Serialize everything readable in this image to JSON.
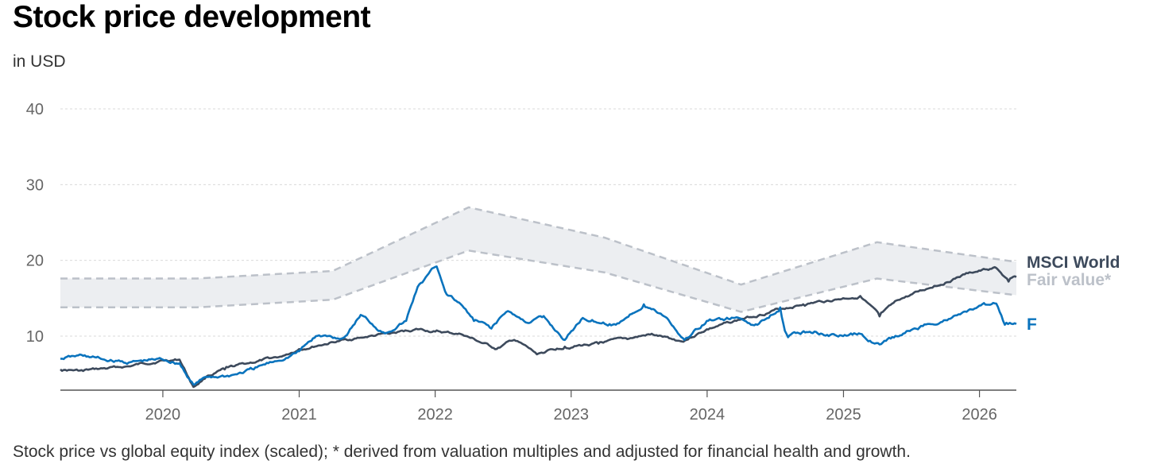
{
  "header": {
    "title": "Stock price development",
    "subtitle": "in USD"
  },
  "footnote": "Stock price vs global equity index (scaled); * derived from valuation multiples and adjusted for financial health and growth.",
  "colors": {
    "stock": "#0a73bd",
    "index": "#3d4a5c",
    "fair_band": "#eceef1",
    "fair_line": "#bcc1c9",
    "grid": "#d9d9d9",
    "axis": "#555555"
  },
  "chart_data": {
    "type": "line",
    "xlim": [
      "2019-04-01",
      "2026-04-10"
    ],
    "ylim": [
      3,
      42
    ],
    "yticks": [
      10,
      20,
      30,
      40
    ],
    "xticks": [
      {
        "date": "2020-01-01",
        "label": "2020"
      },
      {
        "date": "2021-01-01",
        "label": "2021"
      },
      {
        "date": "2022-01-01",
        "label": "2022"
      },
      {
        "date": "2023-01-01",
        "label": "2023"
      },
      {
        "date": "2024-01-01",
        "label": "2024"
      },
      {
        "date": "2025-01-01",
        "label": "2025"
      },
      {
        "date": "2026-01-01",
        "label": "2026"
      }
    ],
    "grid": true,
    "legend": "right-inline",
    "fair_value": {
      "name": "Fair value*",
      "upper": [
        {
          "x": "2019-04-01",
          "y": 17.6
        },
        {
          "x": "2020-04-01",
          "y": 17.6
        },
        {
          "x": "2021-04-01",
          "y": 18.6
        },
        {
          "x": "2022-04-01",
          "y": 27.0
        },
        {
          "x": "2023-04-01",
          "y": 23.0
        },
        {
          "x": "2024-04-01",
          "y": 16.8
        },
        {
          "x": "2025-04-01",
          "y": 22.4
        },
        {
          "x": "2026-04-10",
          "y": 19.8
        }
      ],
      "lower": [
        {
          "x": "2019-04-01",
          "y": 13.8
        },
        {
          "x": "2020-04-01",
          "y": 13.8
        },
        {
          "x": "2021-04-01",
          "y": 14.8
        },
        {
          "x": "2022-04-01",
          "y": 21.3
        },
        {
          "x": "2023-04-01",
          "y": 18.4
        },
        {
          "x": "2024-04-01",
          "y": 13.2
        },
        {
          "x": "2025-04-01",
          "y": 17.6
        },
        {
          "x": "2026-04-10",
          "y": 15.4
        }
      ]
    },
    "series": [
      {
        "name": "MSCI World",
        "color": "#3d4a5c",
        "points": [
          {
            "x": "2019-04-01",
            "y": 5.6
          },
          {
            "x": "2019-06-01",
            "y": 5.4
          },
          {
            "x": "2019-08-01",
            "y": 5.7
          },
          {
            "x": "2019-10-01",
            "y": 6.0
          },
          {
            "x": "2020-01-01",
            "y": 6.8
          },
          {
            "x": "2020-02-15",
            "y": 6.9
          },
          {
            "x": "2020-03-23",
            "y": 3.3
          },
          {
            "x": "2020-05-01",
            "y": 4.8
          },
          {
            "x": "2020-06-15",
            "y": 5.6
          },
          {
            "x": "2020-08-15",
            "y": 6.4
          },
          {
            "x": "2020-11-15",
            "y": 7.3
          },
          {
            "x": "2021-01-01",
            "y": 8.3
          },
          {
            "x": "2021-04-01",
            "y": 9.2
          },
          {
            "x": "2021-06-15",
            "y": 9.8
          },
          {
            "x": "2021-09-01",
            "y": 10.3
          },
          {
            "x": "2021-11-15",
            "y": 10.9
          },
          {
            "x": "2022-01-01",
            "y": 10.6
          },
          {
            "x": "2022-03-15",
            "y": 10.2
          },
          {
            "x": "2022-05-01",
            "y": 9.2
          },
          {
            "x": "2022-06-15",
            "y": 8.3
          },
          {
            "x": "2022-08-01",
            "y": 9.5
          },
          {
            "x": "2022-10-01",
            "y": 7.6
          },
          {
            "x": "2022-12-15",
            "y": 8.6
          },
          {
            "x": "2023-03-15",
            "y": 9.0
          },
          {
            "x": "2023-06-01",
            "y": 9.6
          },
          {
            "x": "2023-08-01",
            "y": 10.2
          },
          {
            "x": "2023-10-25",
            "y": 9.3
          },
          {
            "x": "2023-12-31",
            "y": 10.9
          },
          {
            "x": "2024-04-01",
            "y": 12.2
          },
          {
            "x": "2024-07-15",
            "y": 13.6
          },
          {
            "x": "2024-09-15",
            "y": 14.2
          },
          {
            "x": "2024-12-31",
            "y": 15.0
          },
          {
            "x": "2025-02-15",
            "y": 15.3
          },
          {
            "x": "2025-04-08",
            "y": 12.6
          },
          {
            "x": "2025-06-01",
            "y": 14.8
          },
          {
            "x": "2025-09-01",
            "y": 16.6
          },
          {
            "x": "2025-12-01",
            "y": 18.3
          },
          {
            "x": "2026-02-15",
            "y": 19.0
          },
          {
            "x": "2026-03-20",
            "y": 17.2
          },
          {
            "x": "2026-04-10",
            "y": 17.8
          }
        ]
      },
      {
        "name": "F",
        "color": "#0a73bd",
        "points": [
          {
            "x": "2019-04-01",
            "y": 7.0
          },
          {
            "x": "2019-06-01",
            "y": 7.4
          },
          {
            "x": "2019-08-01",
            "y": 6.8
          },
          {
            "x": "2019-10-01",
            "y": 6.5
          },
          {
            "x": "2020-01-01",
            "y": 6.9
          },
          {
            "x": "2020-02-15",
            "y": 6.4
          },
          {
            "x": "2020-03-23",
            "y": 3.6
          },
          {
            "x": "2020-05-01",
            "y": 4.6
          },
          {
            "x": "2020-07-01",
            "y": 4.8
          },
          {
            "x": "2020-09-01",
            "y": 5.6
          },
          {
            "x": "2020-11-01",
            "y": 6.7
          },
          {
            "x": "2021-01-01",
            "y": 8.0
          },
          {
            "x": "2021-02-15",
            "y": 10.0
          },
          {
            "x": "2021-05-01",
            "y": 9.8
          },
          {
            "x": "2021-06-15",
            "y": 12.8
          },
          {
            "x": "2021-08-15",
            "y": 10.5
          },
          {
            "x": "2021-10-15",
            "y": 12.0
          },
          {
            "x": "2021-11-15",
            "y": 16.5
          },
          {
            "x": "2022-01-05",
            "y": 19.2
          },
          {
            "x": "2022-02-01",
            "y": 15.5
          },
          {
            "x": "2022-03-15",
            "y": 14.0
          },
          {
            "x": "2022-04-15",
            "y": 12.0
          },
          {
            "x": "2022-06-01",
            "y": 11.0
          },
          {
            "x": "2022-07-15",
            "y": 13.3
          },
          {
            "x": "2022-09-01",
            "y": 11.8
          },
          {
            "x": "2022-10-15",
            "y": 12.5
          },
          {
            "x": "2022-12-15",
            "y": 9.5
          },
          {
            "x": "2023-02-01",
            "y": 12.4
          },
          {
            "x": "2023-05-01",
            "y": 11.5
          },
          {
            "x": "2023-07-15",
            "y": 14.2
          },
          {
            "x": "2023-09-15",
            "y": 12.4
          },
          {
            "x": "2023-11-01",
            "y": 9.5
          },
          {
            "x": "2023-12-31",
            "y": 12.0
          },
          {
            "x": "2024-03-15",
            "y": 12.4
          },
          {
            "x": "2024-05-15",
            "y": 11.5
          },
          {
            "x": "2024-07-15",
            "y": 13.8
          },
          {
            "x": "2024-08-01",
            "y": 10.3
          },
          {
            "x": "2024-10-15",
            "y": 10.6
          },
          {
            "x": "2024-12-31",
            "y": 10.0
          },
          {
            "x": "2025-02-15",
            "y": 10.3
          },
          {
            "x": "2025-04-08",
            "y": 8.9
          },
          {
            "x": "2025-06-15",
            "y": 10.4
          },
          {
            "x": "2025-08-15",
            "y": 11.6
          },
          {
            "x": "2025-10-15",
            "y": 12.3
          },
          {
            "x": "2025-12-15",
            "y": 13.5
          },
          {
            "x": "2026-02-15",
            "y": 14.3
          },
          {
            "x": "2026-03-10",
            "y": 11.5
          },
          {
            "x": "2026-04-10",
            "y": 11.6
          }
        ]
      }
    ]
  }
}
